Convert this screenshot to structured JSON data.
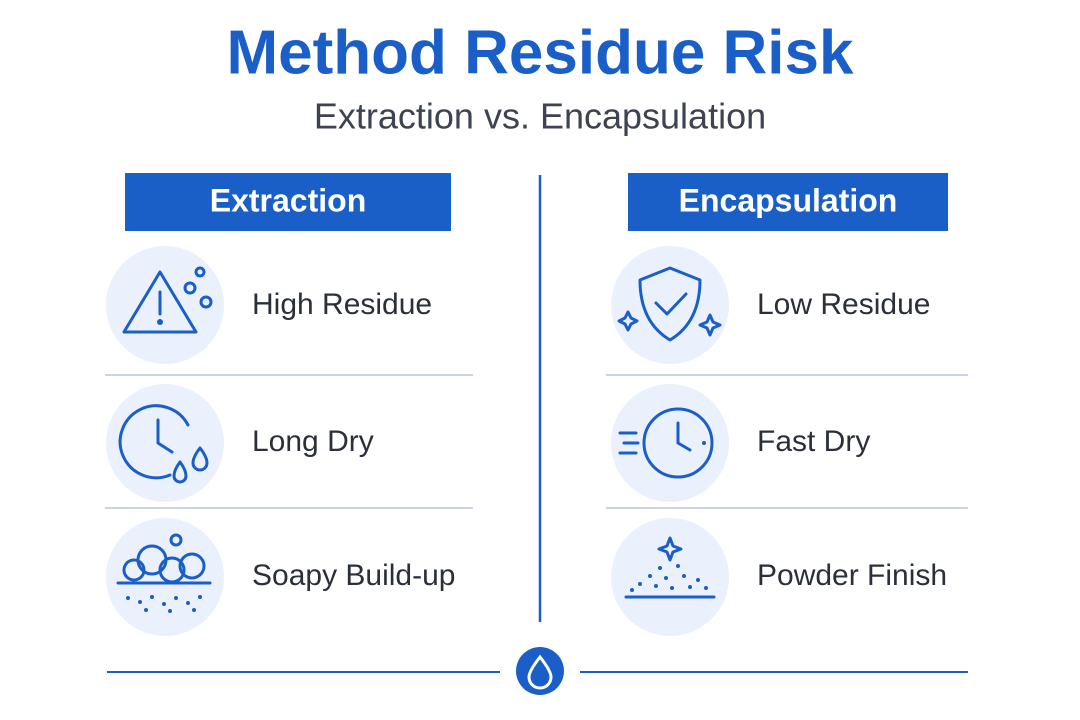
{
  "header": {
    "title": "Method Residue Risk",
    "subtitle": "Extraction vs. Encapsulation"
  },
  "columns": [
    {
      "heading": "Extraction",
      "items": [
        {
          "label": "High Residue"
        },
        {
          "label": "Long Dry"
        },
        {
          "label": "Soapy Build-up"
        }
      ]
    },
    {
      "heading": "Encapsulation",
      "items": [
        {
          "label": "Low Residue"
        },
        {
          "label": "Fast Dry"
        },
        {
          "label": "Powder Finish"
        }
      ]
    }
  ]
}
